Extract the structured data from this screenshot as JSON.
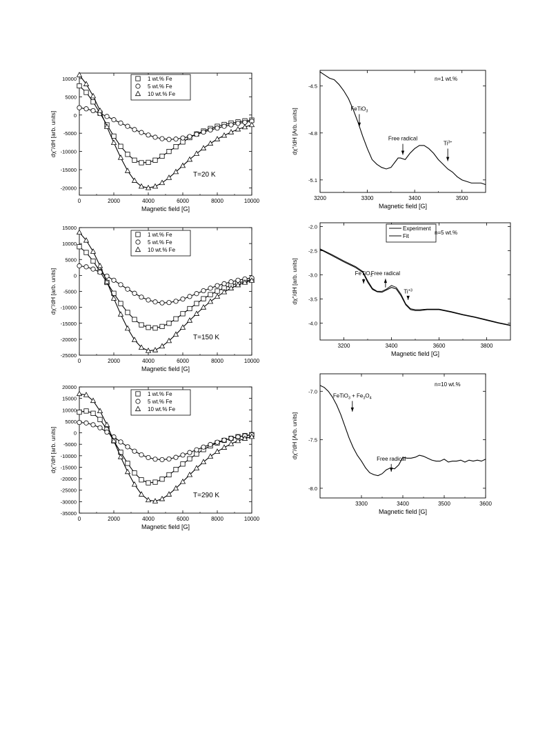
{
  "chart_data": [
    {
      "type": "line",
      "xlabel": "Magnetic field [G]",
      "ylabel": "dχ\"/dH [arb. units]",
      "xlim": [
        0,
        10000
      ],
      "ylim": [
        -22000,
        11500
      ],
      "xticks": [
        0,
        2000,
        4000,
        6000,
        8000,
        10000
      ],
      "yticks": [
        10000,
        5000,
        0,
        -5000,
        -10000,
        -15000,
        -20000
      ],
      "annotation": "T=20 K",
      "legend_position": "top-center",
      "series": [
        {
          "name": "1 wt.% Fe",
          "marker": "square",
          "x": [
            0,
            400,
            800,
            1200,
            1600,
            2000,
            2400,
            2800,
            3200,
            3600,
            4000,
            4400,
            4800,
            5200,
            5600,
            6000,
            6400,
            6800,
            7200,
            7600,
            8000,
            8400,
            8800,
            9200,
            9600,
            10000
          ],
          "y": [
            8000,
            6200,
            3600,
            500,
            -2700,
            -5800,
            -8600,
            -10800,
            -12400,
            -13100,
            -13000,
            -12400,
            -11300,
            -10000,
            -8700,
            -7400,
            -6200,
            -5200,
            -4400,
            -3700,
            -3100,
            -2600,
            -2200,
            -1900,
            -1600,
            -1400
          ]
        },
        {
          "name": "5 wt.% Fe",
          "marker": "circle",
          "x": [
            0,
            400,
            800,
            1200,
            1600,
            2000,
            2400,
            2800,
            3200,
            3600,
            4000,
            4400,
            4800,
            5200,
            5600,
            6000,
            6400,
            6800,
            7200,
            7600,
            8000,
            8400,
            8800,
            9200,
            9600,
            10000
          ],
          "y": [
            2000,
            1700,
            1200,
            400,
            -400,
            -1300,
            -2200,
            -3100,
            -4000,
            -4800,
            -5500,
            -6100,
            -6500,
            -6700,
            -6600,
            -6300,
            -5900,
            -5300,
            -4700,
            -4100,
            -3600,
            -3100,
            -2700,
            -2300,
            -2000,
            -1700
          ]
        },
        {
          "name": "10 wt.% Fe",
          "marker": "triangle",
          "x": [
            0,
            400,
            800,
            1200,
            1600,
            2000,
            2400,
            2800,
            3200,
            3600,
            4000,
            4400,
            4800,
            5200,
            5600,
            6000,
            6400,
            6800,
            7200,
            7600,
            8000,
            8400,
            8800,
            9200,
            9600,
            10000
          ],
          "y": [
            11000,
            8500,
            5200,
            1200,
            -3200,
            -7600,
            -11700,
            -15300,
            -18000,
            -19600,
            -20000,
            -19600,
            -18600,
            -17200,
            -15600,
            -13900,
            -12200,
            -10600,
            -9100,
            -7800,
            -6600,
            -5600,
            -4700,
            -3900,
            -3300,
            -2700
          ]
        }
      ]
    },
    {
      "type": "line",
      "xlabel": "Magnetic field [G]",
      "ylabel": "dχ\"/dH [arb. units]",
      "xlim": [
        0,
        10000
      ],
      "ylim": [
        -25000,
        15000
      ],
      "xticks": [
        0,
        2000,
        4000,
        6000,
        8000,
        10000
      ],
      "yticks": [
        15000,
        10000,
        5000,
        0,
        -5000,
        -10000,
        -15000,
        -20000,
        -25000
      ],
      "annotation": "T=150 K",
      "legend_position": "top-center",
      "series": [
        {
          "name": "1 wt.% Fe",
          "marker": "square",
          "x": [
            0,
            400,
            800,
            1200,
            1600,
            2000,
            2400,
            2800,
            3200,
            3600,
            4000,
            4400,
            4800,
            5200,
            5600,
            6000,
            6400,
            6800,
            7200,
            7600,
            8000,
            8400,
            8800,
            9200,
            9600,
            10000
          ],
          "y": [
            9000,
            7200,
            4500,
            1200,
            -2200,
            -5600,
            -8800,
            -11600,
            -13800,
            -15500,
            -16300,
            -16500,
            -16000,
            -15000,
            -13600,
            -12000,
            -10400,
            -8800,
            -7300,
            -6000,
            -4900,
            -3900,
            -3100,
            -2400,
            -1800,
            -1300
          ]
        },
        {
          "name": "5 wt.% Fe",
          "marker": "circle",
          "x": [
            0,
            400,
            800,
            1200,
            1600,
            2000,
            2400,
            2800,
            3200,
            3600,
            4000,
            4400,
            4800,
            5200,
            5600,
            6000,
            6400,
            6800,
            7200,
            7600,
            8000,
            8400,
            8800,
            9200,
            9600,
            10000
          ],
          "y": [
            3000,
            2700,
            2000,
            1000,
            -200,
            -1500,
            -2900,
            -4300,
            -5600,
            -6800,
            -7700,
            -8300,
            -8600,
            -8500,
            -8100,
            -7400,
            -6600,
            -5700,
            -4800,
            -4000,
            -3200,
            -2600,
            -2000,
            -1500,
            -1100,
            -800
          ]
        },
        {
          "name": "10 wt.% Fe",
          "marker": "triangle",
          "x": [
            0,
            400,
            800,
            1200,
            1600,
            2000,
            2400,
            2800,
            3200,
            3600,
            4000,
            4400,
            4800,
            5200,
            5600,
            6000,
            6400,
            6800,
            7200,
            7600,
            8000,
            8400,
            8800,
            9200,
            9600,
            10000
          ],
          "y": [
            13500,
            11000,
            7500,
            3000,
            -2000,
            -7200,
            -12200,
            -16600,
            -20200,
            -22600,
            -23600,
            -23400,
            -22200,
            -20500,
            -18500,
            -16300,
            -14100,
            -12000,
            -10000,
            -8200,
            -6600,
            -5200,
            -4000,
            -3000,
            -2200,
            -1600
          ]
        }
      ]
    },
    {
      "type": "line",
      "xlabel": "Magnetic field [G]",
      "ylabel": "dχ\"/dH [arb. units]",
      "xlim": [
        0,
        10000
      ],
      "ylim": [
        -35000,
        20000
      ],
      "xticks": [
        0,
        2000,
        4000,
        6000,
        8000,
        10000
      ],
      "yticks": [
        20000,
        15000,
        10000,
        5000,
        0,
        -5000,
        -10000,
        -15000,
        -20000,
        -25000,
        -30000,
        -35000
      ],
      "annotation": "T=290 K",
      "legend_position": "top-center",
      "series": [
        {
          "name": "1 wt.% Fe",
          "marker": "square",
          "x": [
            0,
            400,
            800,
            1200,
            1600,
            2000,
            2400,
            2800,
            3200,
            3600,
            4000,
            4400,
            4800,
            5200,
            5600,
            6000,
            6400,
            6800,
            7200,
            7600,
            8000,
            8400,
            8800,
            9200,
            9600,
            10000
          ],
          "y": [
            9000,
            9500,
            8500,
            5800,
            1500,
            -3500,
            -8500,
            -13300,
            -17500,
            -20500,
            -21800,
            -21500,
            -20200,
            -18300,
            -16000,
            -13600,
            -11300,
            -9200,
            -7300,
            -5700,
            -4400,
            -3300,
            -2400,
            -1700,
            -1200,
            -800
          ]
        },
        {
          "name": "5 wt.% Fe",
          "marker": "circle",
          "x": [
            0,
            400,
            800,
            1200,
            1600,
            2000,
            2400,
            2800,
            3200,
            3600,
            4000,
            4400,
            4800,
            5200,
            5600,
            6000,
            6400,
            6800,
            7200,
            7600,
            8000,
            8400,
            8800,
            9200,
            9600,
            10000
          ],
          "y": [
            4500,
            4300,
            3500,
            2200,
            300,
            -1800,
            -4000,
            -6100,
            -8000,
            -9600,
            -10800,
            -11500,
            -11700,
            -11400,
            -10700,
            -9700,
            -8600,
            -7400,
            -6200,
            -5100,
            -4100,
            -3200,
            -2400,
            -1800,
            -1300,
            -900
          ]
        },
        {
          "name": "10 wt.% Fe",
          "marker": "triangle",
          "x": [
            0,
            400,
            800,
            1200,
            1600,
            2000,
            2400,
            2800,
            3200,
            3600,
            4000,
            4400,
            4800,
            5200,
            5600,
            6000,
            6400,
            6800,
            7200,
            7600,
            8000,
            8400,
            8800,
            9200,
            9600,
            10000
          ],
          "y": [
            17000,
            16500,
            14000,
            9500,
            3500,
            -3500,
            -10500,
            -17000,
            -22500,
            -26800,
            -29300,
            -29800,
            -28800,
            -26800,
            -24200,
            -21300,
            -18300,
            -15400,
            -12700,
            -10300,
            -8200,
            -6400,
            -4800,
            -3500,
            -2500,
            -1700
          ]
        }
      ]
    },
    {
      "type": "line",
      "xlabel": "Magnetic field [G]",
      "ylabel": "dχ\"/dH [Arb. units]",
      "xlim": [
        3200,
        3550
      ],
      "ylim": [
        -5.18,
        -4.4
      ],
      "xticks": [
        3200,
        3300,
        3400,
        3500
      ],
      "yticks": [
        -4.5,
        -4.8,
        -5.1
      ],
      "annotation": "n=1 wt.%",
      "arrow_labels": [
        {
          "text": "FeTiO",
          "sub": "3",
          "sup": "",
          "x": 3283,
          "y_from": -4.68,
          "y_to": -4.76
        },
        {
          "text": "Free radical",
          "sub": "",
          "sup": "",
          "x": 3375,
          "y_from": -4.87,
          "y_to": -4.94
        },
        {
          "text": "Ti",
          "sub": "",
          "sup": "3+",
          "x": 3470,
          "y_from": -4.9,
          "y_to": -4.98
        }
      ],
      "series": [
        {
          "name": "",
          "x": [
            3200,
            3210,
            3220,
            3230,
            3240,
            3250,
            3260,
            3270,
            3280,
            3290,
            3300,
            3310,
            3320,
            3330,
            3340,
            3350,
            3360,
            3365,
            3370,
            3380,
            3390,
            3400,
            3410,
            3420,
            3430,
            3440,
            3450,
            3460,
            3470,
            3480,
            3490,
            3500,
            3510,
            3520,
            3530,
            3540,
            3550
          ],
          "y": [
            -4.41,
            -4.43,
            -4.45,
            -4.46,
            -4.49,
            -4.53,
            -4.58,
            -4.65,
            -4.73,
            -4.82,
            -4.9,
            -4.97,
            -5.0,
            -5.02,
            -5.03,
            -5.02,
            -4.98,
            -4.96,
            -4.96,
            -4.97,
            -4.93,
            -4.9,
            -4.88,
            -4.88,
            -4.9,
            -4.93,
            -4.97,
            -5.0,
            -5.03,
            -5.05,
            -5.08,
            -5.1,
            -5.11,
            -5.12,
            -5.12,
            -5.12,
            -5.13
          ]
        }
      ]
    },
    {
      "type": "line",
      "xlabel": "Magnetic field [G]",
      "ylabel": "dχ\"/dH [arb. units]",
      "xlim": [
        3100,
        3900
      ],
      "ylim": [
        -4.35,
        -1.92
      ],
      "xticks": [
        3200,
        3400,
        3600,
        3800
      ],
      "yticks": [
        -2.0,
        -2.5,
        -3.0,
        -3.5,
        -4.0
      ],
      "annotation": "n=5 wt.%",
      "legend_position": "top-center",
      "arrow_labels": [
        {
          "text": "FeTiO",
          "sub": "3",
          "sup": "",
          "x": 3283,
          "y_from": -3.08,
          "y_to": -3.18
        },
        {
          "text": "Free radical",
          "sub": "",
          "sup": "",
          "x": 3375,
          "y_from": -3.26,
          "y_to": -3.08
        },
        {
          "text": "Ti",
          "sub": "",
          "sup": "+3",
          "x": 3470,
          "y_from": -3.46,
          "y_to": -3.52
        }
      ],
      "series": [
        {
          "name": "Experiment",
          "x": [
            3100,
            3150,
            3200,
            3250,
            3280,
            3300,
            3320,
            3340,
            3360,
            3380,
            3400,
            3420,
            3440,
            3460,
            3480,
            3500,
            3520,
            3550,
            3600,
            3650,
            3700,
            3750,
            3800,
            3850,
            3900
          ],
          "y": [
            -2.47,
            -2.6,
            -2.73,
            -2.85,
            -2.95,
            -3.15,
            -3.3,
            -3.35,
            -3.36,
            -3.31,
            -3.26,
            -3.29,
            -3.43,
            -3.62,
            -3.72,
            -3.74,
            -3.74,
            -3.72,
            -3.72,
            -3.77,
            -3.83,
            -3.88,
            -3.94,
            -4.0,
            -4.05
          ]
        },
        {
          "name": "Fit",
          "x": [
            3100,
            3150,
            3200,
            3250,
            3280,
            3300,
            3320,
            3340,
            3360,
            3380,
            3400,
            3420,
            3440,
            3460,
            3480,
            3500,
            3520,
            3550,
            3600,
            3650,
            3700,
            3750,
            3800,
            3850,
            3900
          ],
          "y": [
            -2.46,
            -2.58,
            -2.71,
            -2.83,
            -2.93,
            -3.12,
            -3.28,
            -3.34,
            -3.34,
            -3.29,
            -3.22,
            -3.26,
            -3.4,
            -3.6,
            -3.7,
            -3.72,
            -3.72,
            -3.71,
            -3.71,
            -3.76,
            -3.82,
            -3.87,
            -3.93,
            -3.99,
            -4.04
          ]
        }
      ]
    },
    {
      "type": "line",
      "xlabel": "Magnetic field [G]",
      "ylabel": "dχ\"/dH [Arb. units]",
      "xlim": [
        3200,
        3600
      ],
      "ylim": [
        -8.1,
        -6.82
      ],
      "xticks": [
        3300,
        3400,
        3500,
        3600
      ],
      "yticks": [
        -7.0,
        -7.5,
        -8.0
      ],
      "annotation": "n=10 wt.%",
      "arrow_labels": [
        {
          "text": "FeTiO",
          "sub": "3",
          "sup": "",
          "text2": " + Fe",
          "sub2": "3",
          "text3": "O",
          "sub3": "4",
          "x": 3278,
          "y_from": -7.1,
          "y_to": -7.21
        },
        {
          "text": "Free radical",
          "sub": "",
          "sup": "",
          "x": 3372,
          "y_from": -7.75,
          "y_to": -7.83
        }
      ],
      "series": [
        {
          "name": "",
          "x": [
            3200,
            3210,
            3220,
            3230,
            3240,
            3250,
            3260,
            3270,
            3280,
            3290,
            3300,
            3310,
            3320,
            3330,
            3340,
            3350,
            3360,
            3370,
            3380,
            3390,
            3400,
            3410,
            3420,
            3430,
            3440,
            3450,
            3460,
            3470,
            3480,
            3490,
            3500,
            3510,
            3520,
            3530,
            3540,
            3550,
            3560,
            3570,
            3580,
            3590,
            3600
          ],
          "y": [
            -6.94,
            -6.96,
            -7.0,
            -7.06,
            -7.14,
            -7.24,
            -7.36,
            -7.48,
            -7.58,
            -7.66,
            -7.72,
            -7.79,
            -7.84,
            -7.86,
            -7.87,
            -7.85,
            -7.81,
            -7.79,
            -7.8,
            -7.76,
            -7.68,
            -7.69,
            -7.69,
            -7.68,
            -7.66,
            -7.67,
            -7.69,
            -7.71,
            -7.72,
            -7.72,
            -7.7,
            -7.73,
            -7.72,
            -7.72,
            -7.71,
            -7.73,
            -7.71,
            -7.72,
            -7.71,
            -7.72,
            -7.7
          ]
        }
      ]
    }
  ]
}
